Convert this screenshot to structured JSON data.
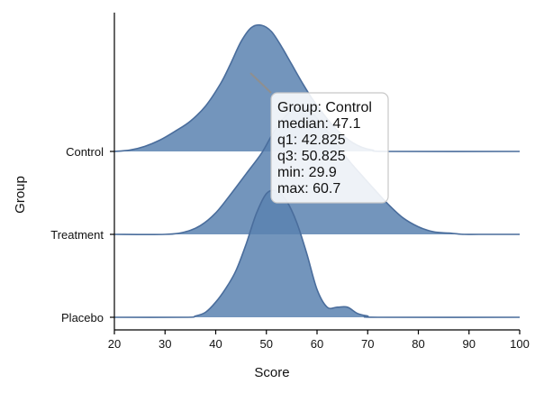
{
  "chart_data": {
    "type": "area",
    "subtype": "ridgeline",
    "title": "",
    "xlabel": "Score",
    "ylabel": "Group",
    "xlim": [
      20,
      100
    ],
    "xticks": [
      20,
      30,
      40,
      50,
      60,
      70,
      80,
      90,
      100
    ],
    "categories": [
      "Control",
      "Treatment",
      "Placebo"
    ],
    "grid": false,
    "colors": {
      "fill": "#5b82b0",
      "line": "#4a6d9c",
      "axis": "#000000",
      "tooltip_border": "#c8c8c8"
    },
    "series": [
      {
        "name": "Control",
        "x": [
          20,
          23,
          26,
          29,
          32,
          35,
          38,
          41,
          43,
          45,
          47,
          49,
          51,
          53,
          55,
          57,
          59,
          61,
          63,
          65,
          67,
          69,
          71,
          74,
          100
        ],
        "y": [
          0,
          0.01,
          0.04,
          0.09,
          0.16,
          0.24,
          0.36,
          0.54,
          0.7,
          0.87,
          0.98,
          1.0,
          0.95,
          0.83,
          0.69,
          0.55,
          0.42,
          0.31,
          0.21,
          0.13,
          0.07,
          0.03,
          0.01,
          0,
          0
        ]
      },
      {
        "name": "Treatment",
        "x": [
          20,
          30,
          34,
          37,
          40,
          43,
          46,
          49,
          51,
          53,
          55,
          57,
          59,
          61,
          63,
          65,
          67,
          69,
          71,
          74,
          77,
          80,
          83,
          86,
          89,
          92,
          100
        ],
        "y": [
          0,
          0,
          0.02,
          0.07,
          0.17,
          0.32,
          0.48,
          0.64,
          0.78,
          0.9,
          0.98,
          1.0,
          0.96,
          0.87,
          0.76,
          0.65,
          0.55,
          0.46,
          0.37,
          0.24,
          0.13,
          0.06,
          0.02,
          0.01,
          0,
          0,
          0
        ]
      },
      {
        "name": "Placebo",
        "x": [
          20,
          34,
          36,
          38,
          40,
          42,
          44,
          46,
          48,
          50,
          52,
          54,
          56,
          58,
          60,
          62,
          64,
          66,
          68,
          70,
          72,
          100
        ],
        "y": [
          0,
          0,
          0.01,
          0.04,
          0.12,
          0.23,
          0.37,
          0.58,
          0.82,
          0.98,
          1.0,
          0.92,
          0.75,
          0.5,
          0.22,
          0.08,
          0.08,
          0.08,
          0.03,
          0.01,
          0,
          0
        ]
      }
    ],
    "tooltip": {
      "target": "Control",
      "lines": [
        "Group: Control",
        "median: 47.1",
        "q1: 42.825",
        "q3: 50.825",
        "min: 29.9",
        "max: 60.7"
      ]
    }
  }
}
